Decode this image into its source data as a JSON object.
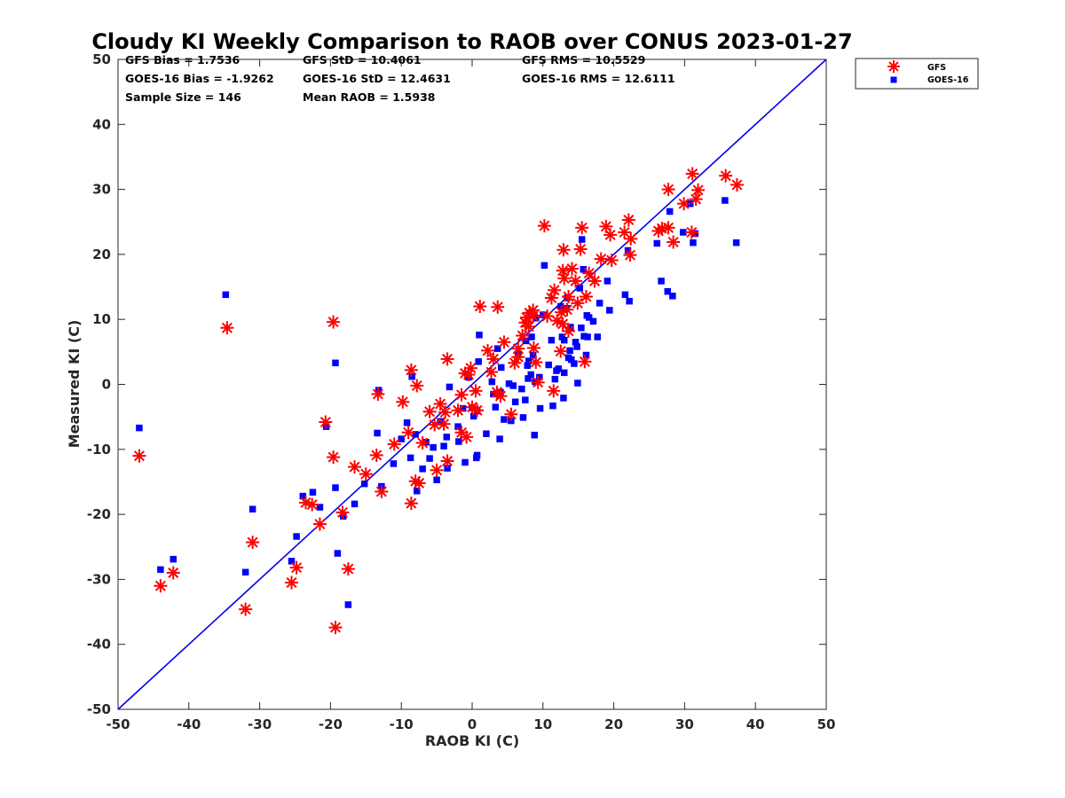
{
  "chart_data": {
    "type": "scatter",
    "title": "Cloudy KI Weekly Comparison to RAOB over CONUS 2023-01-27",
    "xlabel": "RAOB KI (C)",
    "ylabel": "Measured KI (C)",
    "xlim": [
      -50,
      50
    ],
    "ylim": [
      -50,
      50
    ],
    "xticks": [
      -50,
      -40,
      -30,
      -20,
      -10,
      0,
      10,
      20,
      30,
      40,
      50
    ],
    "yticks": [
      -50,
      -40,
      -30,
      -20,
      -10,
      0,
      10,
      20,
      30,
      40,
      50
    ],
    "grid": false,
    "legend_position": "top-right",
    "reference_line": {
      "from": [
        -50,
        -50
      ],
      "to": [
        50,
        50
      ],
      "color": "#0000ee"
    },
    "stats": [
      [
        "GFS Bias = 1.7536",
        "GFS StD = 10.4061",
        "GFS RMS = 10.5529"
      ],
      [
        "GOES-16 Bias = -1.9262",
        "GOES-16 StD = 12.4631",
        "GOES-16 RMS = 12.6111"
      ],
      [
        "Sample Size = 146",
        "Mean RAOB = 1.5938"
      ]
    ],
    "series": [
      {
        "name": "GFS",
        "marker": "asterisk",
        "color": "#ff0000",
        "points": [
          [
            -47,
            -11
          ],
          [
            -44,
            -31
          ],
          [
            -42.2,
            -29
          ],
          [
            -34.6,
            8.7
          ],
          [
            -32,
            -34.6
          ],
          [
            -31,
            -24.3
          ],
          [
            -25.5,
            -30.5
          ],
          [
            -24.8,
            -28.2
          ],
          [
            -23.5,
            -18.2
          ],
          [
            -22.6,
            -18.5
          ],
          [
            -21.5,
            -21.5
          ],
          [
            -20.7,
            -5.8
          ],
          [
            -19.6,
            9.6
          ],
          [
            -19.6,
            -11.2
          ],
          [
            -19.3,
            -37.4
          ],
          [
            -18.3,
            -19.7
          ],
          [
            -17.5,
            -28.4
          ],
          [
            -16.6,
            -12.7
          ],
          [
            -15,
            -13.8
          ],
          [
            -13.5,
            -10.9
          ],
          [
            -13.3,
            -1.5
          ],
          [
            -12.8,
            -16.5
          ],
          [
            -11,
            -9.2
          ],
          [
            -9.8,
            -2.7
          ],
          [
            -9,
            -7.4
          ],
          [
            -8.6,
            2.2
          ],
          [
            -8.6,
            -18.3
          ],
          [
            -8,
            -14.9
          ],
          [
            -7.8,
            -0.2
          ],
          [
            -7.5,
            -15.2
          ],
          [
            -7,
            -9
          ],
          [
            -6,
            -4.2
          ],
          [
            -5.3,
            -6.2
          ],
          [
            -5,
            -13.2
          ],
          [
            -4.5,
            -3
          ],
          [
            -4,
            -6.1
          ],
          [
            -3.8,
            -4.3
          ],
          [
            -3.5,
            -11.8
          ],
          [
            -3.5,
            3.9
          ],
          [
            -2,
            -4
          ],
          [
            -1.5,
            -1.6
          ],
          [
            -1.5,
            -7.4
          ],
          [
            -1,
            1.7
          ],
          [
            -0.8,
            -8.1
          ],
          [
            -0.5,
            1.5
          ],
          [
            -0.2,
            2.5
          ],
          [
            0,
            -3.5
          ],
          [
            0.5,
            -1
          ],
          [
            0.7,
            -4
          ],
          [
            1.1,
            12
          ],
          [
            2.2,
            5.2
          ],
          [
            2.7,
            1.9
          ],
          [
            3,
            3.9
          ],
          [
            3.6,
            11.9
          ],
          [
            3.5,
            -1.2
          ],
          [
            4,
            -1.8
          ],
          [
            4.5,
            6.5
          ],
          [
            5.5,
            -4.6
          ],
          [
            6,
            3.3
          ],
          [
            6.5,
            4.2
          ],
          [
            6.5,
            5.5
          ],
          [
            7.1,
            7.5
          ],
          [
            7.5,
            9.5
          ],
          [
            7.7,
            10.3
          ],
          [
            8,
            8.9
          ],
          [
            8.1,
            11
          ],
          [
            8.6,
            10.5
          ],
          [
            8.6,
            11.4
          ],
          [
            8.7,
            5.6
          ],
          [
            9,
            3.4
          ],
          [
            9.3,
            0.3
          ],
          [
            10.2,
            24.4
          ],
          [
            10.6,
            10.5
          ],
          [
            11.2,
            13.3
          ],
          [
            11.5,
            -1
          ],
          [
            11.6,
            14.5
          ],
          [
            12,
            9.8
          ],
          [
            12.5,
            5.1
          ],
          [
            12.6,
            11.1
          ],
          [
            12.8,
            9.3
          ],
          [
            12.8,
            17.5
          ],
          [
            12.9,
            20.7
          ],
          [
            13,
            16.3
          ],
          [
            13.4,
            11.5
          ],
          [
            13.6,
            13.5
          ],
          [
            13.6,
            8.2
          ],
          [
            14.1,
            17.8
          ],
          [
            14.6,
            15.9
          ],
          [
            14.9,
            12.5
          ],
          [
            15.3,
            20.8
          ],
          [
            15.5,
            24.1
          ],
          [
            15.9,
            3.5
          ],
          [
            16.1,
            13.5
          ],
          [
            16.5,
            17.1
          ],
          [
            17.3,
            15.9
          ],
          [
            18.2,
            19.3
          ],
          [
            18.9,
            24.3
          ],
          [
            19.5,
            23
          ],
          [
            19.7,
            19.1
          ],
          [
            21.5,
            23.4
          ],
          [
            22.1,
            25.3
          ],
          [
            22.3,
            19.9
          ],
          [
            22.4,
            22.4
          ],
          [
            26.3,
            23.6
          ],
          [
            26.8,
            24
          ],
          [
            27.7,
            24.1
          ],
          [
            27.7,
            30
          ],
          [
            28.4,
            21.9
          ],
          [
            29.9,
            27.8
          ],
          [
            31,
            23.4
          ],
          [
            31.1,
            32.4
          ],
          [
            31.6,
            28.5
          ],
          [
            31.9,
            29.9
          ],
          [
            35.8,
            32.1
          ],
          [
            37.4,
            30.7
          ]
        ]
      },
      {
        "name": "GOES-16",
        "marker": "square",
        "color": "#0000ff",
        "points": [
          [
            -47,
            -6.7
          ],
          [
            -44,
            -28.5
          ],
          [
            -42.2,
            -26.9
          ],
          [
            -34.8,
            13.8
          ],
          [
            -32,
            -28.9
          ],
          [
            -31,
            -19.2
          ],
          [
            -25.5,
            -27.2
          ],
          [
            -24.8,
            -23.4
          ],
          [
            -23.9,
            -17.2
          ],
          [
            -22.5,
            -16.6
          ],
          [
            -21.5,
            -18.9
          ],
          [
            -20.6,
            -6.5
          ],
          [
            -19.3,
            3.3
          ],
          [
            -19.3,
            -15.9
          ],
          [
            -19,
            -26
          ],
          [
            -18.2,
            -20.3
          ],
          [
            -17.5,
            -33.9
          ],
          [
            -16.6,
            -18.4
          ],
          [
            -15.2,
            -15.3
          ],
          [
            -13.4,
            -7.5
          ],
          [
            -13.2,
            -0.9
          ],
          [
            -12.8,
            -15.7
          ],
          [
            -11.1,
            -12.2
          ],
          [
            -10,
            -8.4
          ],
          [
            -9.2,
            -5.9
          ],
          [
            -8.7,
            -11.3
          ],
          [
            -8.5,
            1.2
          ],
          [
            -8,
            -7.7
          ],
          [
            -7.8,
            -16.4
          ],
          [
            -7,
            -13
          ],
          [
            -6.5,
            -8.9
          ],
          [
            -6,
            -11.4
          ],
          [
            -5.5,
            -9.7
          ],
          [
            -5,
            -14.7
          ],
          [
            -4.5,
            -5.7
          ],
          [
            -4,
            -9.5
          ],
          [
            -3.6,
            -8.1
          ],
          [
            -3.5,
            -12.9
          ],
          [
            -3.2,
            -0.4
          ],
          [
            -2,
            -6.5
          ],
          [
            -1.9,
            -8.8
          ],
          [
            -1.3,
            -3.7
          ],
          [
            -1,
            -12
          ],
          [
            -0.5,
            1.1
          ],
          [
            0,
            -3.6
          ],
          [
            0.2,
            -4.9
          ],
          [
            0.6,
            -11.3
          ],
          [
            0.7,
            -10.9
          ],
          [
            0.7,
            -4.1
          ],
          [
            0.9,
            3.5
          ],
          [
            1,
            7.6
          ],
          [
            2,
            -7.6
          ],
          [
            2.8,
            0.4
          ],
          [
            3,
            -1.5
          ],
          [
            3.3,
            -3.5
          ],
          [
            3.6,
            5.5
          ],
          [
            3.9,
            -8.4
          ],
          [
            4,
            -1.2
          ],
          [
            4.1,
            2.6
          ],
          [
            4.5,
            -5.4
          ],
          [
            5.2,
            0.1
          ],
          [
            5.5,
            -5.6
          ],
          [
            5.8,
            -0.2
          ],
          [
            6.1,
            -2.7
          ],
          [
            6.5,
            4.7
          ],
          [
            7,
            -0.7
          ],
          [
            7.2,
            -5.1
          ],
          [
            7.5,
            -2.4
          ],
          [
            7.6,
            6.7
          ],
          [
            7.8,
            2.9
          ],
          [
            7.9,
            0.9
          ],
          [
            8,
            3.6
          ],
          [
            8.3,
            1.5
          ],
          [
            8.4,
            7.3
          ],
          [
            8.6,
            4.5
          ],
          [
            8.8,
            -7.8
          ],
          [
            8.9,
            0.4
          ],
          [
            9,
            10.2
          ],
          [
            9.5,
            1.1
          ],
          [
            9.6,
            -3.7
          ],
          [
            10,
            10.7
          ],
          [
            10.2,
            18.3
          ],
          [
            10.8,
            3
          ],
          [
            11.2,
            6.8
          ],
          [
            11.4,
            -3.3
          ],
          [
            11.7,
            0.8
          ],
          [
            11.9,
            2.1
          ],
          [
            12.2,
            2.4
          ],
          [
            12.5,
            12
          ],
          [
            12.7,
            7.3
          ],
          [
            12.9,
            -2.1
          ],
          [
            13,
            6.8
          ],
          [
            13,
            1.8
          ],
          [
            13.3,
            11.7
          ],
          [
            13.4,
            13.3
          ],
          [
            13.6,
            4.1
          ],
          [
            13.8,
            5.2
          ],
          [
            13.9,
            8.8
          ],
          [
            14,
            3.8
          ],
          [
            14.4,
            3.2
          ],
          [
            14.6,
            6.5
          ],
          [
            14.8,
            5.8
          ],
          [
            14.9,
            0.2
          ],
          [
            15.2,
            14.8
          ],
          [
            15.4,
            8.7
          ],
          [
            15.5,
            22.3
          ],
          [
            15.7,
            17.7
          ],
          [
            15.8,
            7.4
          ],
          [
            16.1,
            4.5
          ],
          [
            16.2,
            10.6
          ],
          [
            16.3,
            7.3
          ],
          [
            16.5,
            10.3
          ],
          [
            17.1,
            9.7
          ],
          [
            17.7,
            7.3
          ],
          [
            18,
            12.5
          ],
          [
            19.1,
            15.9
          ],
          [
            19.4,
            11.4
          ],
          [
            21.6,
            13.8
          ],
          [
            22,
            20.6
          ],
          [
            22.2,
            12.8
          ],
          [
            26.1,
            21.7
          ],
          [
            26.7,
            15.9
          ],
          [
            27.6,
            14.3
          ],
          [
            27.9,
            26.6
          ],
          [
            28.3,
            13.6
          ],
          [
            29.8,
            23.4
          ],
          [
            30.8,
            27.8
          ],
          [
            31.2,
            21.8
          ],
          [
            31.5,
            23.2
          ],
          [
            35.7,
            28.3
          ],
          [
            37.3,
            21.8
          ]
        ]
      }
    ]
  }
}
